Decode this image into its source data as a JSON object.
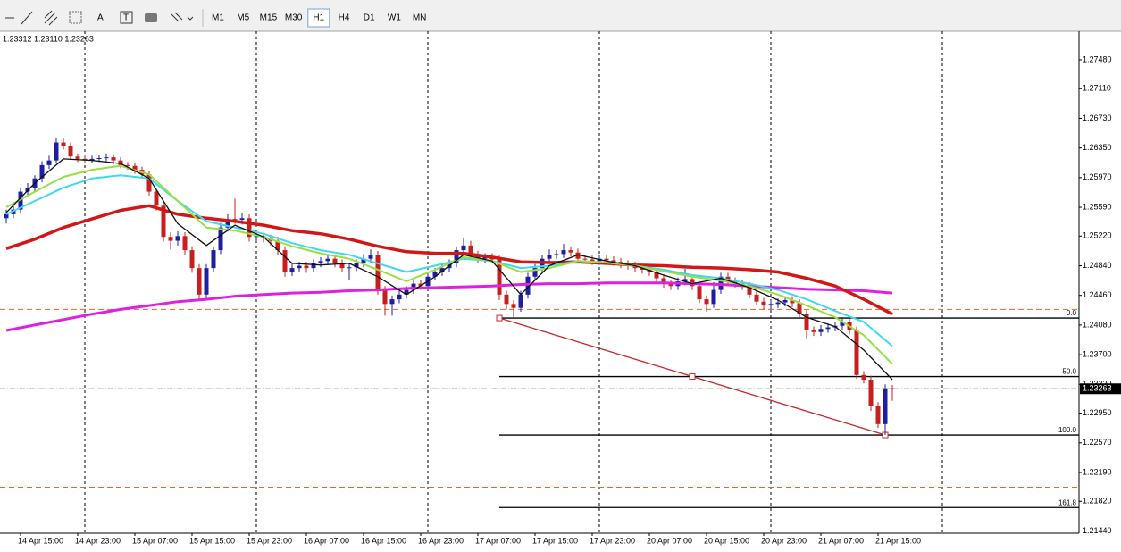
{
  "toolbar": {
    "timeframes": [
      "M1",
      "M5",
      "M15",
      "M30",
      "H1",
      "H4",
      "D1",
      "W1",
      "MN"
    ],
    "selected_index": 4
  },
  "chart_data": {
    "type": "candlestick",
    "header": "1.23312 1.23110 1.23263",
    "xlim": [
      -0.875,
      150.125
    ],
    "xticks": [
      {
        "value": 2,
        "label": "14 Apr 15:00"
      },
      {
        "value": 10,
        "label": "14 Apr 23:00"
      },
      {
        "value": 18,
        "label": "15 Apr 07:00"
      },
      {
        "value": 26,
        "label": "15 Apr 15:00"
      },
      {
        "value": 34,
        "label": "15 Apr 23:00"
      },
      {
        "value": 42,
        "label": "16 Apr 07:00"
      },
      {
        "value": 50,
        "label": "16 Apr 15:00"
      },
      {
        "value": 58,
        "label": "16 Apr 23:00"
      },
      {
        "value": 66,
        "label": "17 Apr 07:00"
      },
      {
        "value": 74,
        "label": "17 Apr 15:00"
      },
      {
        "value": 82,
        "label": "17 Apr 23:00"
      },
      {
        "value": 90,
        "label": "20 Apr 07:00"
      },
      {
        "value": 98,
        "label": "20 Apr 15:00"
      },
      {
        "value": 106,
        "label": "20 Apr 23:00"
      },
      {
        "value": 114,
        "label": "21 Apr 07:00"
      },
      {
        "value": 122,
        "label": "21 Apr 15:00"
      }
    ],
    "ylim": [
      1.21411,
      1.27846
    ],
    "yticks": [
      {
        "value": 1.2748,
        "label": "1.27480"
      },
      {
        "value": 1.2711,
        "label": "1.27110"
      },
      {
        "value": 1.2673,
        "label": "1.26730"
      },
      {
        "value": 1.2635,
        "label": "1.26350"
      },
      {
        "value": 1.2597,
        "label": "1.25970"
      },
      {
        "value": 1.2559,
        "label": "1.25590"
      },
      {
        "value": 1.2522,
        "label": "1.25220"
      },
      {
        "value": 1.2484,
        "label": "1.24840"
      },
      {
        "value": 1.2446,
        "label": "1.24460"
      },
      {
        "value": 1.2408,
        "label": "1.24080"
      },
      {
        "value": 1.237,
        "label": "1.23700"
      },
      {
        "value": 1.2332,
        "label": "1.23320"
      },
      {
        "value": 1.2295,
        "label": "1.22950"
      },
      {
        "value": 1.2257,
        "label": "1.22570"
      },
      {
        "value": 1.2219,
        "label": "1.22190"
      },
      {
        "value": 1.2182,
        "label": "1.21820"
      },
      {
        "value": 1.2144,
        "label": "1.21440"
      }
    ],
    "up_color": "#1e1ea0",
    "down_color": "#c81e1e",
    "candles": [
      [
        1.2545,
        1.2556,
        1.2538,
        1.255
      ],
      [
        1.255,
        1.2562,
        1.2545,
        1.2556
      ],
      [
        1.2556,
        1.2584,
        1.2552,
        1.2579
      ],
      [
        1.2579,
        1.259,
        1.2574,
        1.2584
      ],
      [
        1.2584,
        1.26,
        1.2579,
        1.2596
      ],
      [
        1.2596,
        1.2618,
        1.2591,
        1.2613
      ],
      [
        1.2613,
        1.2625,
        1.2608,
        1.2619
      ],
      [
        1.2619,
        1.2648,
        1.2615,
        1.2642
      ],
      [
        1.2642,
        1.2647,
        1.2633,
        1.2638
      ],
      [
        1.2638,
        1.2642,
        1.262,
        1.2624
      ],
      [
        1.2624,
        1.2628,
        1.2617,
        1.2621
      ],
      [
        1.2621,
        1.2626,
        1.2615,
        1.2619
      ],
      [
        1.2619,
        1.2625,
        1.2616,
        1.2621
      ],
      [
        1.2621,
        1.2626,
        1.2617,
        1.2622
      ],
      [
        1.2622,
        1.2628,
        1.2618,
        1.2623
      ],
      [
        1.2623,
        1.2627,
        1.2614,
        1.2619
      ],
      [
        1.2619,
        1.2623,
        1.2609,
        1.2613
      ],
      [
        1.2613,
        1.2617,
        1.2607,
        1.2612
      ],
      [
        1.2612,
        1.2616,
        1.2602,
        1.2607
      ],
      [
        1.2607,
        1.2611,
        1.2596,
        1.2601
      ],
      [
        1.2601,
        1.2605,
        1.2574,
        1.2579
      ],
      [
        1.2579,
        1.2583,
        1.2555,
        1.2561
      ],
      [
        1.2561,
        1.2566,
        1.2515,
        1.2521
      ],
      [
        1.2521,
        1.2527,
        1.2505,
        1.2516
      ],
      [
        1.2516,
        1.2528,
        1.251,
        1.2522
      ],
      [
        1.2522,
        1.2527,
        1.2498,
        1.2504
      ],
      [
        1.2504,
        1.2509,
        1.2475,
        1.2481
      ],
      [
        1.2481,
        1.2486,
        1.244,
        1.2447
      ],
      [
        1.2447,
        1.2486,
        1.2442,
        1.2481
      ],
      [
        1.2481,
        1.2509,
        1.2476,
        1.2504
      ],
      [
        1.2504,
        1.2539,
        1.2499,
        1.2533
      ],
      [
        1.2533,
        1.255,
        1.2528,
        1.2544
      ],
      [
        1.2544,
        1.257,
        1.2538,
        1.2543
      ],
      [
        1.2543,
        1.2551,
        1.2537,
        1.2545
      ],
      [
        1.2545,
        1.255,
        1.2515,
        1.2521
      ],
      [
        1.2521,
        1.2527,
        1.2515,
        1.2522
      ],
      [
        1.2522,
        1.2526,
        1.2514,
        1.252
      ],
      [
        1.252,
        1.2524,
        1.251,
        1.2516
      ],
      [
        1.2516,
        1.2521,
        1.2498,
        1.2504
      ],
      [
        1.2504,
        1.2509,
        1.247,
        1.2476
      ],
      [
        1.2476,
        1.2487,
        1.2471,
        1.2481
      ],
      [
        1.2481,
        1.2489,
        1.2476,
        1.2484
      ],
      [
        1.2484,
        1.2489,
        1.2475,
        1.2481
      ],
      [
        1.2481,
        1.2492,
        1.2476,
        1.2487
      ],
      [
        1.2487,
        1.2495,
        1.2482,
        1.249
      ],
      [
        1.249,
        1.2498,
        1.2485,
        1.2493
      ],
      [
        1.2493,
        1.2498,
        1.2482,
        1.2487
      ],
      [
        1.2487,
        1.2492,
        1.2476,
        1.2481
      ],
      [
        1.2481,
        1.2488,
        1.2466,
        1.2482
      ],
      [
        1.2482,
        1.2492,
        1.2477,
        1.2487
      ],
      [
        1.2487,
        1.2499,
        1.2482,
        1.2493
      ],
      [
        1.2493,
        1.2505,
        1.2488,
        1.2498
      ],
      [
        1.2498,
        1.2503,
        1.2447,
        1.2453
      ],
      [
        1.2453,
        1.2458,
        1.242,
        1.2435
      ],
      [
        1.2435,
        1.2446,
        1.242,
        1.2441
      ],
      [
        1.2441,
        1.2452,
        1.2436,
        1.2447
      ],
      [
        1.2447,
        1.2458,
        1.2442,
        1.2453
      ],
      [
        1.2453,
        1.2466,
        1.2448,
        1.2461
      ],
      [
        1.2461,
        1.2466,
        1.2453,
        1.2458
      ],
      [
        1.2458,
        1.2475,
        1.2453,
        1.247
      ],
      [
        1.247,
        1.2481,
        1.2465,
        1.2476
      ],
      [
        1.2476,
        1.2486,
        1.2471,
        1.2481
      ],
      [
        1.2481,
        1.2492,
        1.2476,
        1.2487
      ],
      [
        1.2487,
        1.2509,
        1.2482,
        1.2504
      ],
      [
        1.2504,
        1.252,
        1.2499,
        1.251
      ],
      [
        1.251,
        1.2516,
        1.2493,
        1.2498
      ],
      [
        1.2498,
        1.2503,
        1.2488,
        1.2493
      ],
      [
        1.2493,
        1.25,
        1.2488,
        1.2495
      ],
      [
        1.2495,
        1.25,
        1.2487,
        1.2492
      ],
      [
        1.2492,
        1.2497,
        1.244,
        1.2447
      ],
      [
        1.2447,
        1.2452,
        1.2428,
        1.2435
      ],
      [
        1.2435,
        1.244,
        1.2418,
        1.243
      ],
      [
        1.243,
        1.2452,
        1.2425,
        1.2447
      ],
      [
        1.2447,
        1.2475,
        1.2442,
        1.247
      ],
      [
        1.247,
        1.2486,
        1.2465,
        1.2481
      ],
      [
        1.2481,
        1.2498,
        1.2476,
        1.2493
      ],
      [
        1.2493,
        1.2505,
        1.2488,
        1.2498
      ],
      [
        1.2498,
        1.2504,
        1.2493,
        1.2499
      ],
      [
        1.2499,
        1.2512,
        1.2494,
        1.2504
      ],
      [
        1.2504,
        1.2509,
        1.2496,
        1.2501
      ],
      [
        1.2501,
        1.2506,
        1.2488,
        1.2493
      ],
      [
        1.2493,
        1.2498,
        1.2487,
        1.2492
      ],
      [
        1.2492,
        1.2497,
        1.2485,
        1.249
      ],
      [
        1.249,
        1.2498,
        1.2485,
        1.2493
      ],
      [
        1.2493,
        1.2498,
        1.2486,
        1.2491
      ],
      [
        1.2491,
        1.2496,
        1.2484,
        1.2489
      ],
      [
        1.2489,
        1.2494,
        1.2481,
        1.2486
      ],
      [
        1.2486,
        1.2491,
        1.2479,
        1.2484
      ],
      [
        1.2484,
        1.2489,
        1.2476,
        1.2481
      ],
      [
        1.2481,
        1.2486,
        1.2474,
        1.2479
      ],
      [
        1.2479,
        1.2484,
        1.2471,
        1.2476
      ],
      [
        1.2476,
        1.2481,
        1.2463,
        1.2468
      ],
      [
        1.2468,
        1.2473,
        1.2456,
        1.2461
      ],
      [
        1.2461,
        1.2466,
        1.2453,
        1.2458
      ],
      [
        1.2458,
        1.2469,
        1.2453,
        1.2464
      ],
      [
        1.2464,
        1.248,
        1.2459,
        1.2467
      ],
      [
        1.2467,
        1.2472,
        1.2453,
        1.2458
      ],
      [
        1.2458,
        1.2463,
        1.2436,
        1.2441
      ],
      [
        1.2441,
        1.2446,
        1.2425,
        1.2435
      ],
      [
        1.2435,
        1.2463,
        1.243,
        1.2453
      ],
      [
        1.2453,
        1.2475,
        1.2448,
        1.247
      ],
      [
        1.247,
        1.2475,
        1.2459,
        1.2464
      ],
      [
        1.2464,
        1.2469,
        1.2456,
        1.2461
      ],
      [
        1.2461,
        1.2466,
        1.2453,
        1.2458
      ],
      [
        1.2458,
        1.2463,
        1.2442,
        1.2447
      ],
      [
        1.2447,
        1.2452,
        1.2433,
        1.2438
      ],
      [
        1.2438,
        1.2443,
        1.2428,
        1.2433
      ],
      [
        1.2433,
        1.244,
        1.2428,
        1.2435
      ],
      [
        1.2435,
        1.2442,
        1.243,
        1.2437
      ],
      [
        1.2437,
        1.2445,
        1.2432,
        1.244
      ],
      [
        1.244,
        1.2445,
        1.2431,
        1.2436
      ],
      [
        1.2436,
        1.2441,
        1.2417,
        1.2422
      ],
      [
        1.2422,
        1.2427,
        1.239,
        1.2401
      ],
      [
        1.2401,
        1.2406,
        1.2394,
        1.2399
      ],
      [
        1.2399,
        1.2408,
        1.2394,
        1.2403
      ],
      [
        1.2403,
        1.241,
        1.2398,
        1.2405
      ],
      [
        1.2405,
        1.2412,
        1.24,
        1.2407
      ],
      [
        1.2407,
        1.2418,
        1.2402,
        1.2412
      ],
      [
        1.2412,
        1.2417,
        1.2396,
        1.2401
      ],
      [
        1.2401,
        1.2406,
        1.2339,
        1.2344
      ],
      [
        1.2344,
        1.2349,
        1.2333,
        1.2338
      ],
      [
        1.2338,
        1.2343,
        1.2298,
        1.2304
      ],
      [
        1.2304,
        1.2309,
        1.2276,
        1.2281
      ],
      [
        1.2281,
        1.2332,
        1.2267,
        1.2327
      ],
      [
        1.2327,
        1.23312,
        1.2311,
        1.23263
      ]
    ],
    "ma_x": [
      0,
      4,
      8,
      12,
      16,
      20,
      24,
      28,
      32,
      36,
      40,
      44,
      48,
      52,
      56,
      60,
      64,
      68,
      72,
      76,
      80,
      84,
      88,
      92,
      96,
      100,
      104,
      108,
      112,
      116,
      120,
      124
    ],
    "series": [
      {
        "color": "#e020e0",
        "width": 3,
        "values": [
          1.2401,
          1.2408,
          1.2415,
          1.2422,
          1.2428,
          1.2433,
          1.2438,
          1.2441,
          1.2445,
          1.2447,
          1.2449,
          1.245,
          1.2452,
          1.2453,
          1.2455,
          1.2456,
          1.2457,
          1.2458,
          1.246,
          1.2461,
          1.2461,
          1.2462,
          1.2462,
          1.2462,
          1.2461,
          1.246,
          1.2458,
          1.2456,
          1.2454,
          1.2453,
          1.2452,
          1.2449
        ]
      },
      {
        "color": "#d01818",
        "width": 3.5,
        "values": [
          1.2506,
          1.2518,
          1.2533,
          1.2544,
          1.2555,
          1.2561,
          1.255,
          1.2545,
          1.2541,
          1.2536,
          1.2529,
          1.2525,
          1.2518,
          1.2509,
          1.2502,
          1.25,
          1.25,
          1.2495,
          1.2489,
          1.2488,
          1.2489,
          1.2487,
          1.2485,
          1.2484,
          1.2482,
          1.2481,
          1.2479,
          1.2476,
          1.2468,
          1.2458,
          1.2441,
          1.2422
        ]
      },
      {
        "color": "#40d8f0",
        "width": 2,
        "values": [
          1.255,
          1.2567,
          1.2584,
          1.2596,
          1.26,
          1.2596,
          1.2567,
          1.2541,
          1.2533,
          1.2525,
          1.2513,
          1.2504,
          1.2498,
          1.2487,
          1.2476,
          1.2484,
          1.2493,
          1.249,
          1.2481,
          1.2484,
          1.249,
          1.2488,
          1.2484,
          1.2479,
          1.2472,
          1.2468,
          1.2461,
          1.2453,
          1.2441,
          1.2426,
          1.2412,
          1.2381
        ]
      },
      {
        "color": "#98e040",
        "width": 2,
        "values": [
          1.2559,
          1.2579,
          1.2598,
          1.2607,
          1.2612,
          1.2601,
          1.2567,
          1.2533,
          1.2529,
          1.2521,
          1.2509,
          1.25,
          1.2493,
          1.2479,
          1.2464,
          1.2479,
          1.2495,
          1.249,
          1.2476,
          1.2481,
          1.249,
          1.2488,
          1.2484,
          1.2477,
          1.247,
          1.2465,
          1.2458,
          1.2447,
          1.2433,
          1.2418,
          1.2395,
          1.2358
        ]
      },
      {
        "color": "#101010",
        "width": 1.3,
        "values": [
          1.2552,
          1.259,
          1.2621,
          1.2619,
          1.2615,
          1.2596,
          1.2538,
          1.251,
          1.2536,
          1.2521,
          1.2487,
          1.2485,
          1.2487,
          1.247,
          1.2447,
          1.247,
          1.2498,
          1.249,
          1.2447,
          1.2484,
          1.2498,
          1.249,
          1.2484,
          1.2472,
          1.2461,
          1.2468,
          1.2456,
          1.244,
          1.2418,
          1.2406,
          1.2376,
          1.2338
        ]
      }
    ],
    "period_separators": [
      11,
      35,
      59,
      83,
      107,
      131
    ],
    "levels": [
      {
        "value": 1.2428,
        "color": "#e8642c"
      },
      {
        "value": 1.22,
        "color": "#e8642c"
      }
    ],
    "current_line_color": "#2e7d32",
    "trendline": {
      "x": [
        69,
        123
      ],
      "values": [
        1.2417,
        1.2267
      ],
      "color": "#c8282d"
    },
    "fibonacci": {
      "x_start": 69,
      "color": "#000000",
      "levels": [
        {
          "value": 1.2417,
          "label": "0.0"
        },
        {
          "value": 1.2342,
          "label": "50.0"
        },
        {
          "value": 1.2267,
          "label": "100.0"
        },
        {
          "value": 1.2174,
          "label": "161.8"
        }
      ]
    }
  }
}
